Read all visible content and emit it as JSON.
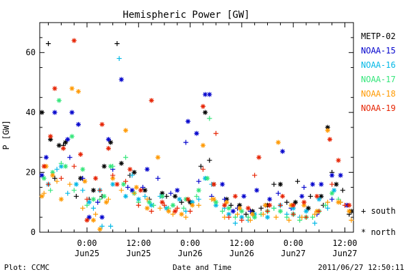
{
  "footer": {
    "left": "Plot: CCMC",
    "center": "Date and Time",
    "right": "2011/06/27 12:50:11"
  },
  "markers": {
    "south_symbol": "+",
    "south_label": "south",
    "north_symbol": "*",
    "north_label": "north"
  },
  "chart_data": {
    "type": "scatter",
    "title": "Hemispheric Power [GW]",
    "xlabel": "",
    "ylabel": "P [GW]",
    "x_unit": "hours since 2011-06-24 00:00 UT",
    "xlim": [
      13.0,
      86.0
    ],
    "ylim": [
      0,
      70
    ],
    "grid": false,
    "legend_position": "right",
    "y_ticks": [
      0,
      20,
      40,
      60
    ],
    "x_ticks": [
      {
        "x": 24,
        "time": "0:00",
        "date": "Jun25"
      },
      {
        "x": 36,
        "time": "12:00",
        "date": "Jun25"
      },
      {
        "x": 48,
        "time": "0:00",
        "date": "Jun26"
      },
      {
        "x": 60,
        "time": "12:00",
        "date": "Jun26"
      },
      {
        "x": 72,
        "time": "0:00",
        "date": "Jun27"
      },
      {
        "x": 84,
        "time": "12:00",
        "date": "Jun27"
      }
    ],
    "series": [
      {
        "name": "METP-02",
        "color": "#000000",
        "south": [
          [
            15.0,
            63
          ],
          [
            16.5,
            18
          ],
          [
            18.5,
            29
          ],
          [
            21.5,
            12
          ],
          [
            24.5,
            11
          ],
          [
            27.5,
            12
          ],
          [
            31.0,
            63
          ],
          [
            34.0,
            19
          ],
          [
            38.5,
            11
          ],
          [
            42.5,
            12
          ],
          [
            46.0,
            10
          ],
          [
            50.5,
            22
          ],
          [
            52.5,
            24
          ],
          [
            57.5,
            9
          ],
          [
            61.0,
            6
          ],
          [
            64.5,
            8
          ],
          [
            67.5,
            16
          ],
          [
            70.5,
            10
          ],
          [
            73.0,
            17
          ],
          [
            76.0,
            12
          ],
          [
            79.0,
            9
          ],
          [
            81.0,
            20
          ],
          [
            83.5,
            14
          ],
          [
            85.0,
            6
          ]
        ],
        "north": [
          [
            13.5,
            40
          ],
          [
            15.5,
            31
          ],
          [
            17.5,
            29
          ],
          [
            19.0,
            30
          ],
          [
            22.5,
            18
          ],
          [
            25.5,
            14
          ],
          [
            28.0,
            22
          ],
          [
            29.5,
            30
          ],
          [
            32.0,
            23
          ],
          [
            35.0,
            20
          ],
          [
            37.5,
            14
          ],
          [
            41.5,
            13
          ],
          [
            44.5,
            12
          ],
          [
            48.0,
            10
          ],
          [
            51.5,
            40
          ],
          [
            53.5,
            16
          ],
          [
            56.5,
            11
          ],
          [
            59.5,
            9
          ],
          [
            62.5,
            7
          ],
          [
            66.0,
            9
          ],
          [
            69.0,
            16
          ],
          [
            72.5,
            10
          ],
          [
            75.5,
            8
          ],
          [
            78.5,
            12
          ],
          [
            80.0,
            35
          ],
          [
            82.0,
            16
          ],
          [
            85.5,
            7
          ]
        ]
      },
      {
        "name": "NOAA-15",
        "color": "#0000cc",
        "south": [
          [
            20.0,
            25
          ],
          [
            23.0,
            18
          ],
          [
            26.5,
            10
          ],
          [
            30.0,
            21
          ],
          [
            33.5,
            15
          ],
          [
            37.0,
            15
          ],
          [
            40.5,
            18
          ],
          [
            43.5,
            13
          ],
          [
            47.0,
            30
          ],
          [
            50.0,
            17
          ],
          [
            53.0,
            12
          ],
          [
            56.0,
            11
          ],
          [
            59.0,
            8
          ],
          [
            62.0,
            7
          ],
          [
            65.5,
            9
          ],
          [
            68.5,
            13
          ],
          [
            71.5,
            8
          ],
          [
            74.5,
            15
          ],
          [
            77.5,
            6
          ],
          [
            81.0,
            11
          ]
        ],
        "north": [
          [
            13.5,
            19
          ],
          [
            14.5,
            25
          ],
          [
            16.5,
            40
          ],
          [
            19.5,
            31
          ],
          [
            20.5,
            40
          ],
          [
            22.0,
            36
          ],
          [
            24.5,
            5
          ],
          [
            27.5,
            5
          ],
          [
            29.0,
            31
          ],
          [
            32.0,
            51
          ],
          [
            34.5,
            14
          ],
          [
            38.0,
            21
          ],
          [
            41.5,
            12
          ],
          [
            45.0,
            14
          ],
          [
            47.5,
            37
          ],
          [
            49.5,
            33
          ],
          [
            51.5,
            46
          ],
          [
            52.5,
            46
          ],
          [
            55.5,
            16
          ],
          [
            58.0,
            7
          ],
          [
            60.5,
            12
          ],
          [
            63.5,
            14
          ],
          [
            66.5,
            11
          ],
          [
            69.5,
            27
          ],
          [
            72.0,
            6
          ],
          [
            74.0,
            12
          ],
          [
            76.5,
            16
          ],
          [
            78.5,
            16
          ],
          [
            81.0,
            19
          ],
          [
            83.0,
            19
          ],
          [
            84.5,
            9
          ]
        ]
      },
      {
        "name": "NOAA-16",
        "color": "#00b8e6",
        "south": [
          [
            17.0,
            21
          ],
          [
            19.5,
            13
          ],
          [
            23.0,
            14
          ],
          [
            25.5,
            8
          ],
          [
            27.5,
            2
          ],
          [
            29.5,
            2
          ],
          [
            31.5,
            58
          ],
          [
            34.5,
            19
          ],
          [
            37.5,
            12
          ],
          [
            41.0,
            12
          ],
          [
            44.0,
            9
          ],
          [
            47.0,
            7
          ],
          [
            50.0,
            11
          ],
          [
            53.0,
            16
          ],
          [
            56.0,
            8
          ],
          [
            58.5,
            3
          ],
          [
            61.5,
            4
          ],
          [
            64.5,
            6
          ],
          [
            67.5,
            8
          ],
          [
            70.5,
            6
          ],
          [
            73.5,
            5
          ],
          [
            77.0,
            3
          ],
          [
            80.0,
            8
          ],
          [
            83.0,
            10
          ]
        ],
        "north": [
          [
            15.0,
            16
          ],
          [
            18.0,
            22
          ],
          [
            21.5,
            16
          ],
          [
            24.5,
            10
          ],
          [
            27.0,
            14
          ],
          [
            30.0,
            16
          ],
          [
            33.0,
            12
          ],
          [
            36.0,
            11
          ],
          [
            39.0,
            9
          ],
          [
            42.5,
            8
          ],
          [
            45.5,
            11
          ],
          [
            48.5,
            10
          ],
          [
            51.5,
            18
          ],
          [
            54.0,
            9
          ],
          [
            57.0,
            6
          ],
          [
            60.0,
            5
          ],
          [
            63.0,
            6
          ],
          [
            66.0,
            5
          ],
          [
            69.0,
            9
          ],
          [
            72.0,
            8
          ],
          [
            75.0,
            7
          ],
          [
            78.0,
            11
          ],
          [
            81.5,
            14
          ]
        ]
      },
      {
        "name": "NOAA-17",
        "color": "#33e67a",
        "south": [
          [
            15.5,
            14
          ],
          [
            18.0,
            23
          ],
          [
            21.0,
            14
          ],
          [
            24.0,
            9
          ],
          [
            27.0,
            11
          ],
          [
            30.0,
            22
          ],
          [
            33.0,
            25
          ],
          [
            36.0,
            10
          ],
          [
            39.5,
            9
          ],
          [
            43.0,
            8
          ],
          [
            46.5,
            8
          ],
          [
            49.5,
            12
          ],
          [
            52.5,
            38
          ],
          [
            55.5,
            7
          ],
          [
            58.5,
            5
          ],
          [
            61.5,
            5
          ],
          [
            64.5,
            6
          ],
          [
            67.5,
            8
          ],
          [
            70.5,
            5
          ],
          [
            73.5,
            4
          ],
          [
            76.5,
            5
          ],
          [
            79.5,
            9
          ],
          [
            82.5,
            11
          ]
        ],
        "north": [
          [
            14.0,
            18
          ],
          [
            16.0,
            20
          ],
          [
            17.5,
            44
          ],
          [
            19.0,
            22
          ],
          [
            20.5,
            32
          ],
          [
            23.0,
            21
          ],
          [
            25.5,
            11
          ],
          [
            28.0,
            12
          ],
          [
            29.5,
            22
          ],
          [
            32.5,
            16
          ],
          [
            35.0,
            13
          ],
          [
            38.5,
            10
          ],
          [
            41.5,
            12
          ],
          [
            44.0,
            9
          ],
          [
            47.0,
            11
          ],
          [
            50.0,
            14
          ],
          [
            52.0,
            18
          ],
          [
            54.0,
            10
          ],
          [
            57.0,
            8
          ],
          [
            60.0,
            7
          ],
          [
            63.0,
            5
          ],
          [
            66.0,
            7
          ],
          [
            69.0,
            7
          ],
          [
            72.0,
            6
          ],
          [
            75.0,
            5
          ],
          [
            78.0,
            7
          ],
          [
            81.0,
            13
          ]
        ]
      },
      {
        "name": "NOAA-18",
        "color": "#ff9900",
        "south": [
          [
            14.0,
            13
          ],
          [
            17.0,
            17
          ],
          [
            20.0,
            16
          ],
          [
            23.0,
            8
          ],
          [
            26.0,
            6
          ],
          [
            29.0,
            11
          ],
          [
            32.0,
            14
          ],
          [
            35.0,
            13
          ],
          [
            38.0,
            11
          ],
          [
            41.0,
            8
          ],
          [
            44.0,
            6
          ],
          [
            47.0,
            5
          ],
          [
            50.0,
            9
          ],
          [
            53.0,
            11
          ],
          [
            56.0,
            5
          ],
          [
            59.0,
            6
          ],
          [
            62.0,
            4
          ],
          [
            65.0,
            6
          ],
          [
            68.0,
            5
          ],
          [
            71.0,
            4
          ],
          [
            74.0,
            5
          ],
          [
            77.0,
            6
          ],
          [
            80.0,
            10
          ],
          [
            83.0,
            10
          ],
          [
            85.5,
            4
          ]
        ],
        "north": [
          [
            13.5,
            12
          ],
          [
            14.5,
            22
          ],
          [
            16.0,
            19
          ],
          [
            18.0,
            11
          ],
          [
            20.5,
            48
          ],
          [
            22.0,
            47
          ],
          [
            23.5,
            17
          ],
          [
            25.5,
            4
          ],
          [
            27.0,
            1
          ],
          [
            28.5,
            10
          ],
          [
            30.0,
            18
          ],
          [
            33.0,
            34
          ],
          [
            35.5,
            15
          ],
          [
            38.0,
            8
          ],
          [
            40.5,
            25
          ],
          [
            43.0,
            7
          ],
          [
            46.0,
            6
          ],
          [
            48.5,
            9
          ],
          [
            51.0,
            29
          ],
          [
            53.5,
            11
          ],
          [
            56.5,
            10
          ],
          [
            59.5,
            8
          ],
          [
            62.5,
            6
          ],
          [
            65.5,
            9
          ],
          [
            68.5,
            30
          ],
          [
            71.5,
            9
          ],
          [
            74.5,
            9
          ],
          [
            77.5,
            7
          ],
          [
            80.0,
            34
          ],
          [
            82.5,
            10
          ],
          [
            85.0,
            7
          ]
        ]
      },
      {
        "name": "NOAA-19",
        "color": "#e62200",
        "south": [
          [
            15.0,
            16
          ],
          [
            18.0,
            18
          ],
          [
            21.0,
            22
          ],
          [
            24.0,
            11
          ],
          [
            27.0,
            14
          ],
          [
            30.0,
            19
          ],
          [
            33.0,
            17
          ],
          [
            36.0,
            9
          ],
          [
            39.0,
            7
          ],
          [
            42.0,
            9
          ],
          [
            45.0,
            8
          ],
          [
            48.0,
            7
          ],
          [
            51.0,
            21
          ],
          [
            54.0,
            33
          ],
          [
            57.0,
            5
          ],
          [
            60.0,
            4
          ],
          [
            63.0,
            19
          ],
          [
            66.0,
            7
          ],
          [
            69.0,
            9
          ],
          [
            72.0,
            6
          ],
          [
            75.0,
            5
          ],
          [
            78.0,
            7
          ],
          [
            81.0,
            16
          ],
          [
            84.0,
            9
          ]
        ],
        "north": [
          [
            14.0,
            22
          ],
          [
            15.5,
            32
          ],
          [
            16.5,
            48
          ],
          [
            18.5,
            28
          ],
          [
            21.0,
            64
          ],
          [
            22.5,
            26
          ],
          [
            24.0,
            4
          ],
          [
            26.0,
            18
          ],
          [
            27.5,
            36
          ],
          [
            29.0,
            28
          ],
          [
            31.0,
            16
          ],
          [
            34.0,
            21
          ],
          [
            36.5,
            14
          ],
          [
            39.0,
            44
          ],
          [
            41.5,
            10
          ],
          [
            44.5,
            7
          ],
          [
            47.5,
            11
          ],
          [
            51.0,
            42
          ],
          [
            53.5,
            16
          ],
          [
            56.0,
            9
          ],
          [
            58.5,
            12
          ],
          [
            61.5,
            8
          ],
          [
            64.0,
            25
          ],
          [
            66.5,
            9
          ],
          [
            69.5,
            12
          ],
          [
            72.0,
            9
          ],
          [
            74.5,
            10
          ],
          [
            77.5,
            12
          ],
          [
            80.5,
            31
          ],
          [
            82.5,
            24
          ],
          [
            85.0,
            9
          ]
        ]
      }
    ]
  }
}
